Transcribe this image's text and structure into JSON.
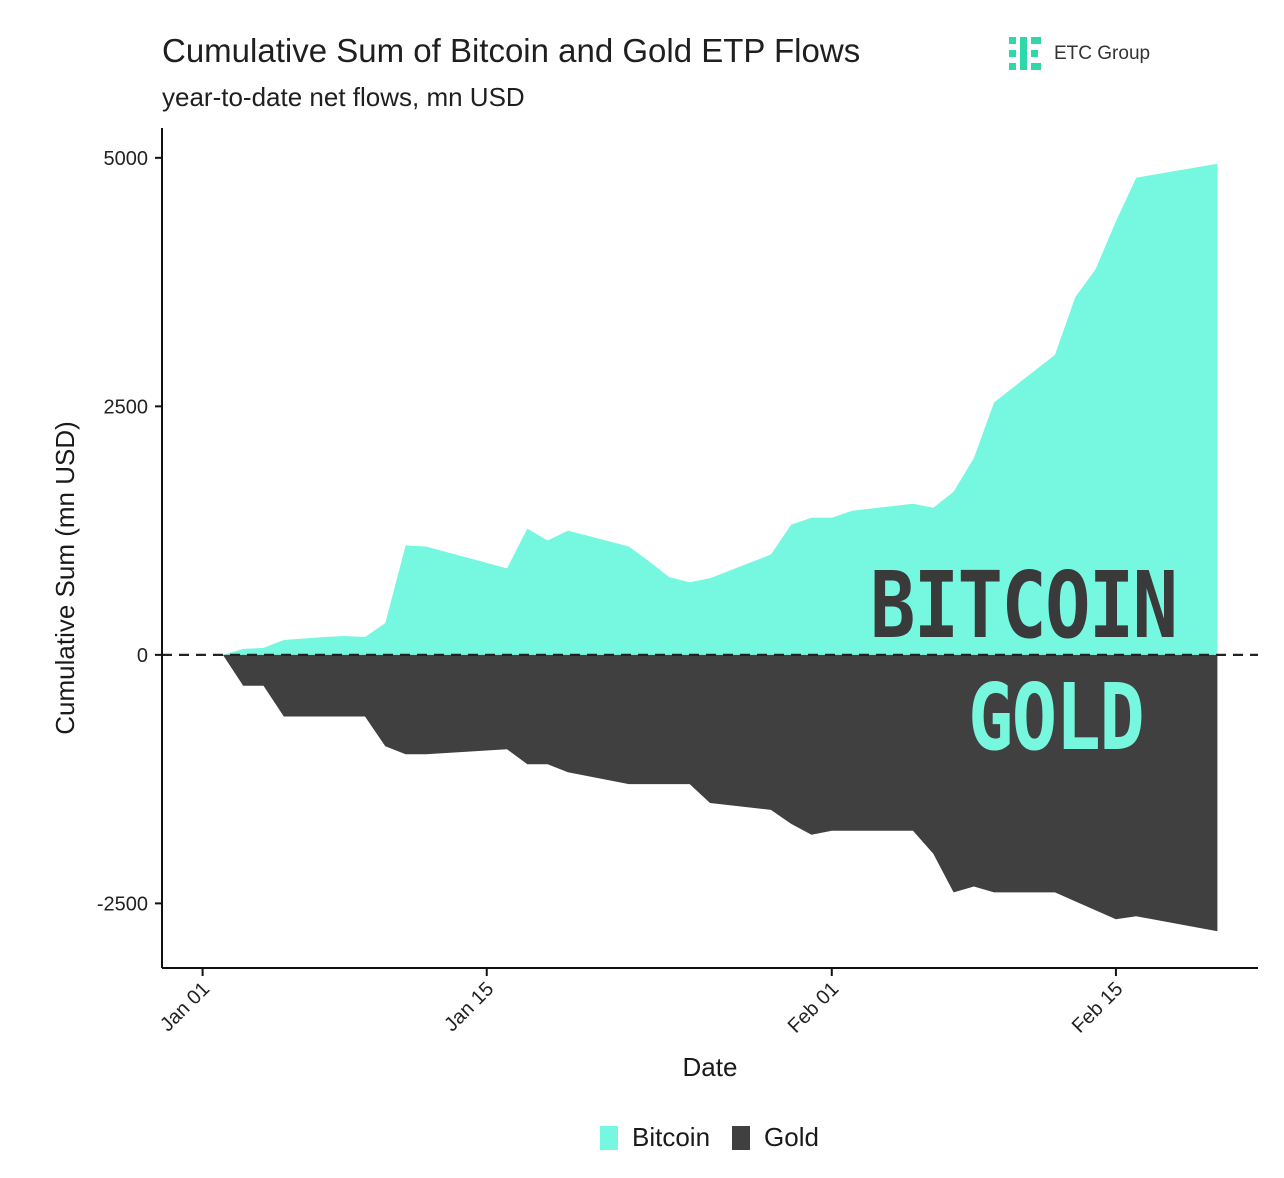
{
  "chart_data": {
    "type": "area",
    "title": "Cumulative Sum of Bitcoin and Gold ETP Flows",
    "subtitle": "year-to-date net flows, mn USD",
    "xlabel": "Date",
    "ylabel": "Cumulative Sum (mn USD)",
    "ylim": [
      -3150,
      5300
    ],
    "y_ticks": [
      5000,
      2500,
      0,
      -2500
    ],
    "y_tick_labels": [
      "5000",
      "2500",
      "0",
      "-2500"
    ],
    "x_ticks": [
      "2024-01-01",
      "2024-01-15",
      "2024-02-01",
      "2024-02-15"
    ],
    "x_tick_labels": [
      "Jan 01",
      "Jan 15",
      "Feb 01",
      "Feb 15"
    ],
    "x_range": [
      "2023-12-30",
      "2024-02-22"
    ],
    "zero_line": "dashed",
    "grid": false,
    "legend": "bottom",
    "series": [
      {
        "name": "Bitcoin",
        "color": "#76f7e0",
        "points": [
          [
            "2024-01-02",
            0
          ],
          [
            "2024-01-03",
            60
          ],
          [
            "2024-01-04",
            70
          ],
          [
            "2024-01-05",
            150
          ],
          [
            "2024-01-07",
            180
          ],
          [
            "2024-01-08",
            190
          ],
          [
            "2024-01-09",
            180
          ],
          [
            "2024-01-10",
            320
          ],
          [
            "2024-01-11",
            1100
          ],
          [
            "2024-01-12",
            1090
          ],
          [
            "2024-01-16",
            870
          ],
          [
            "2024-01-17",
            1270
          ],
          [
            "2024-01-18",
            1150
          ],
          [
            "2024-01-19",
            1250
          ],
          [
            "2024-01-22",
            1090
          ],
          [
            "2024-01-23",
            940
          ],
          [
            "2024-01-24",
            780
          ],
          [
            "2024-01-25",
            730
          ],
          [
            "2024-01-26",
            770
          ],
          [
            "2024-01-29",
            1010
          ],
          [
            "2024-01-30",
            1310
          ],
          [
            "2024-01-31",
            1380
          ],
          [
            "2024-02-01",
            1380
          ],
          [
            "2024-02-02",
            1450
          ],
          [
            "2024-02-05",
            1520
          ],
          [
            "2024-02-06",
            1480
          ],
          [
            "2024-02-07",
            1640
          ],
          [
            "2024-02-08",
            1980
          ],
          [
            "2024-02-09",
            2540
          ],
          [
            "2024-02-12",
            3020
          ],
          [
            "2024-02-13",
            3600
          ],
          [
            "2024-02-14",
            3880
          ],
          [
            "2024-02-15",
            4360
          ],
          [
            "2024-02-16",
            4800
          ],
          [
            "2024-02-20",
            4940
          ]
        ]
      },
      {
        "name": "Gold",
        "color": "#404040",
        "points": [
          [
            "2024-01-02",
            0
          ],
          [
            "2024-01-03",
            -310
          ],
          [
            "2024-01-04",
            -310
          ],
          [
            "2024-01-05",
            -620
          ],
          [
            "2024-01-08",
            -620
          ],
          [
            "2024-01-09",
            -620
          ],
          [
            "2024-01-10",
            -920
          ],
          [
            "2024-01-11",
            -1000
          ],
          [
            "2024-01-12",
            -1000
          ],
          [
            "2024-01-16",
            -950
          ],
          [
            "2024-01-17",
            -1100
          ],
          [
            "2024-01-18",
            -1100
          ],
          [
            "2024-01-19",
            -1180
          ],
          [
            "2024-01-22",
            -1300
          ],
          [
            "2024-01-25",
            -1300
          ],
          [
            "2024-01-26",
            -1490
          ],
          [
            "2024-01-29",
            -1560
          ],
          [
            "2024-01-30",
            -1700
          ],
          [
            "2024-01-31",
            -1810
          ],
          [
            "2024-02-01",
            -1770
          ],
          [
            "2024-02-05",
            -1770
          ],
          [
            "2024-02-06",
            -2000
          ],
          [
            "2024-02-07",
            -2390
          ],
          [
            "2024-02-08",
            -2330
          ],
          [
            "2024-02-09",
            -2390
          ],
          [
            "2024-02-12",
            -2390
          ],
          [
            "2024-02-13",
            -2480
          ],
          [
            "2024-02-15",
            -2660
          ],
          [
            "2024-02-16",
            -2630
          ],
          [
            "2024-02-20",
            -2780
          ]
        ]
      }
    ]
  },
  "branding": {
    "logo_text": "ETC Group",
    "logo_color": "#2ed8a8"
  },
  "overlay": {
    "bitcoin_label": "BITCOIN",
    "gold_label": "GOLD"
  },
  "legend": {
    "items": [
      {
        "label": "Bitcoin",
        "color": "#76f7e0"
      },
      {
        "label": "Gold",
        "color": "#404040"
      }
    ]
  }
}
